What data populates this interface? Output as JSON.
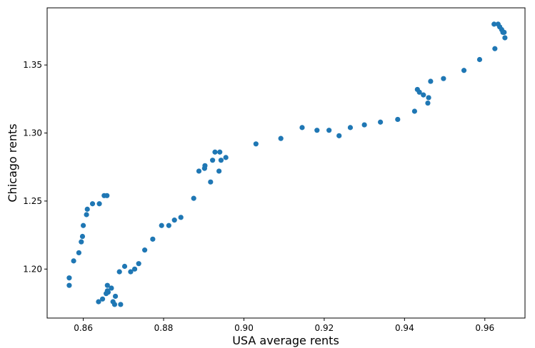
{
  "chart_data": {
    "type": "scatter",
    "title": "",
    "xlabel": "USA average rents",
    "ylabel": "Chicago rents",
    "xlim": [
      0.851,
      0.97
    ],
    "ylim": [
      1.164,
      1.392
    ],
    "xticks": [
      0.86,
      0.88,
      0.9,
      0.92,
      0.94,
      0.96
    ],
    "xtick_labels": [
      "0.86",
      "0.88",
      "0.90",
      "0.92",
      "0.94",
      "0.96"
    ],
    "yticks": [
      1.2,
      1.25,
      1.3,
      1.35
    ],
    "ytick_labels": [
      "1.20",
      "1.25",
      "1.30",
      "1.35"
    ],
    "grid": false,
    "legend": "none",
    "marker_color": "#1f77b4",
    "series": [
      {
        "x": [
          0.8565,
          0.8565,
          0.8576,
          0.8589,
          0.8595,
          0.8598,
          0.86,
          0.8608,
          0.861,
          0.8623,
          0.864,
          0.8652,
          0.8659,
          0.8638,
          0.8648,
          0.8657,
          0.866,
          0.866,
          0.8662,
          0.867,
          0.8674,
          0.8678,
          0.868,
          0.869,
          0.8693,
          0.8703,
          0.8718,
          0.8728,
          0.8738,
          0.8753,
          0.8773,
          0.8795,
          0.8813,
          0.8827,
          0.8843,
          0.8875,
          0.8888,
          0.8902,
          0.8903,
          0.8917,
          0.8922,
          0.8928,
          0.8938,
          0.894,
          0.8943,
          0.8955,
          0.903,
          0.9092,
          0.9145,
          0.9182,
          0.9212,
          0.9237,
          0.9265,
          0.93,
          0.934,
          0.9383,
          0.9425,
          0.9432,
          0.9437,
          0.9447,
          0.9458,
          0.946,
          0.9465,
          0.9497,
          0.9548,
          0.9587,
          0.9623,
          0.9625,
          0.9633,
          0.9637,
          0.9642,
          0.9645,
          0.9648,
          0.965
        ],
        "y": [
          1.1935,
          1.188,
          1.206,
          1.212,
          1.22,
          1.224,
          1.232,
          1.24,
          1.244,
          1.248,
          1.248,
          1.254,
          1.254,
          1.176,
          1.178,
          1.182,
          1.184,
          1.188,
          1.183,
          1.186,
          1.176,
          1.174,
          1.18,
          1.198,
          1.174,
          1.202,
          1.198,
          1.2,
          1.204,
          1.214,
          1.222,
          1.232,
          1.232,
          1.236,
          1.238,
          1.252,
          1.272,
          1.274,
          1.276,
          1.264,
          1.28,
          1.286,
          1.272,
          1.286,
          1.28,
          1.282,
          1.292,
          1.296,
          1.304,
          1.302,
          1.302,
          1.298,
          1.304,
          1.306,
          1.308,
          1.31,
          1.316,
          1.332,
          1.33,
          1.328,
          1.322,
          1.326,
          1.338,
          1.34,
          1.346,
          1.354,
          1.38,
          1.362,
          1.38,
          1.378,
          1.376,
          1.374,
          1.374,
          1.37
        ]
      }
    ]
  }
}
